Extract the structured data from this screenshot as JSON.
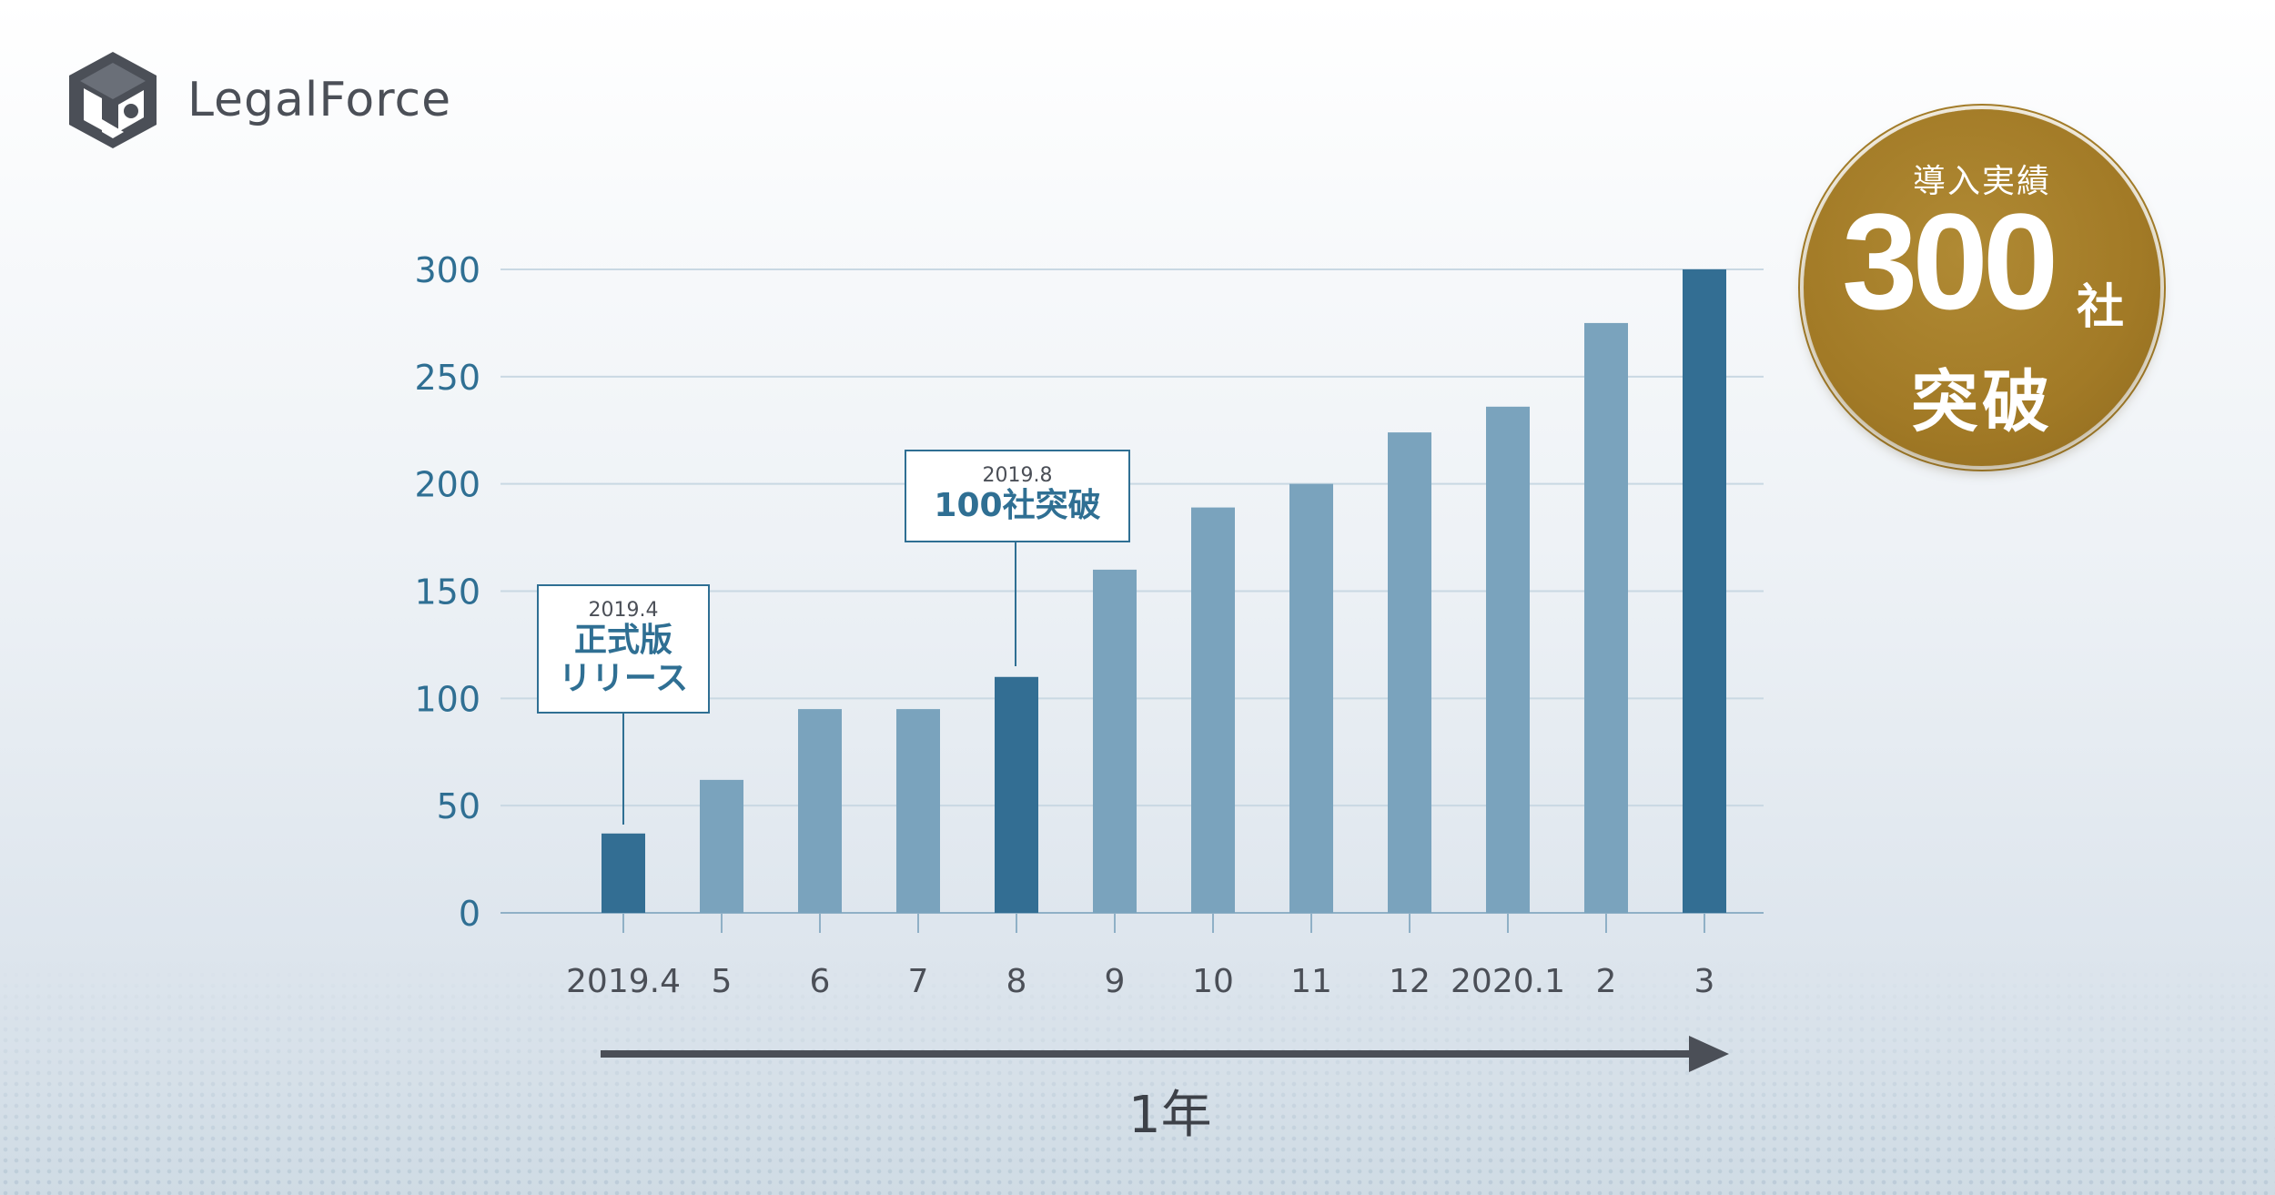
{
  "brand": {
    "name": "LegalForce",
    "logo_icon": "lf-cube-logo-icon"
  },
  "badge": {
    "top": "導入実績",
    "number": "300",
    "unit": "社",
    "bottom": "突破",
    "color": "#a27a26"
  },
  "callouts": [
    {
      "date": "2019.4",
      "lines": [
        "正式版",
        "リリース"
      ]
    },
    {
      "date": "2019.8",
      "lines": [
        "100社突破"
      ]
    }
  ],
  "timeline": {
    "label": "1年"
  },
  "chart_data": {
    "type": "bar",
    "categories": [
      "2019.4",
      "5",
      "6",
      "7",
      "8",
      "9",
      "10",
      "11",
      "12",
      "2020.1",
      "2",
      "3"
    ],
    "values": [
      37,
      62,
      95,
      95,
      110,
      160,
      189,
      200,
      224,
      236,
      275,
      300
    ],
    "highlighted": [
      "2019.4",
      "8",
      "3"
    ],
    "ylim": [
      0,
      300
    ],
    "yticks": [
      0,
      50,
      100,
      150,
      200,
      250,
      300
    ],
    "grid": true,
    "colors": {
      "bar": "#7aa3bd",
      "highlight": "#336e93",
      "axis_text": "#2f6f93",
      "grid": "#c9d8e3"
    }
  }
}
